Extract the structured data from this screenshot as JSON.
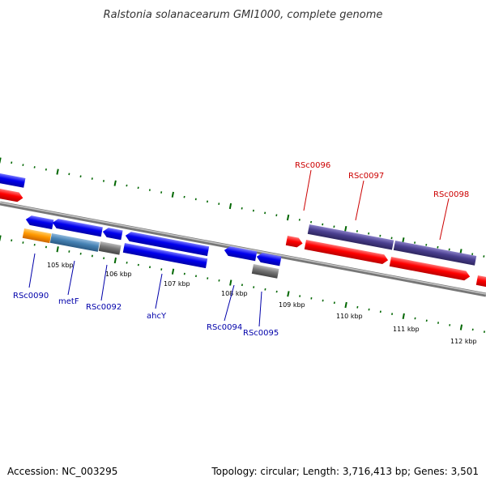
{
  "title": "Ralstonia solanacearum GMI1000, complete genome",
  "footer": {
    "accession": "Accession: NC_003295",
    "summary": "Topology: circular; Length: 3,716,413 bp; Genes: 3,501"
  },
  "colors": {
    "forward_label": "#cc0000",
    "reverse_label": "#0000aa",
    "red_arrow": "#ff0000",
    "blue_arrow": "#0000ee",
    "purple_bar": "#4a3f8f",
    "orange": "#ff9900",
    "steelblue": "#4682b4",
    "gray": "#777777",
    "tick": "#006600",
    "backbone": "#999999"
  },
  "kbp_ticks": [
    {
      "label": "105 kbp"
    },
    {
      "label": "106 kbp"
    },
    {
      "label": "107 kbp"
    },
    {
      "label": "108 kbp"
    },
    {
      "label": "109 kbp"
    },
    {
      "label": "110 kbp"
    },
    {
      "label": "111 kbp"
    },
    {
      "label": "112 kbp"
    }
  ],
  "forward_labels": [
    "RSc0096",
    "RSc0097",
    "RSc0098"
  ],
  "reverse_labels": [
    "RSc0090",
    "metF",
    "RSc0092",
    "ahcY",
    "RSc0094",
    "RSc0095"
  ]
}
